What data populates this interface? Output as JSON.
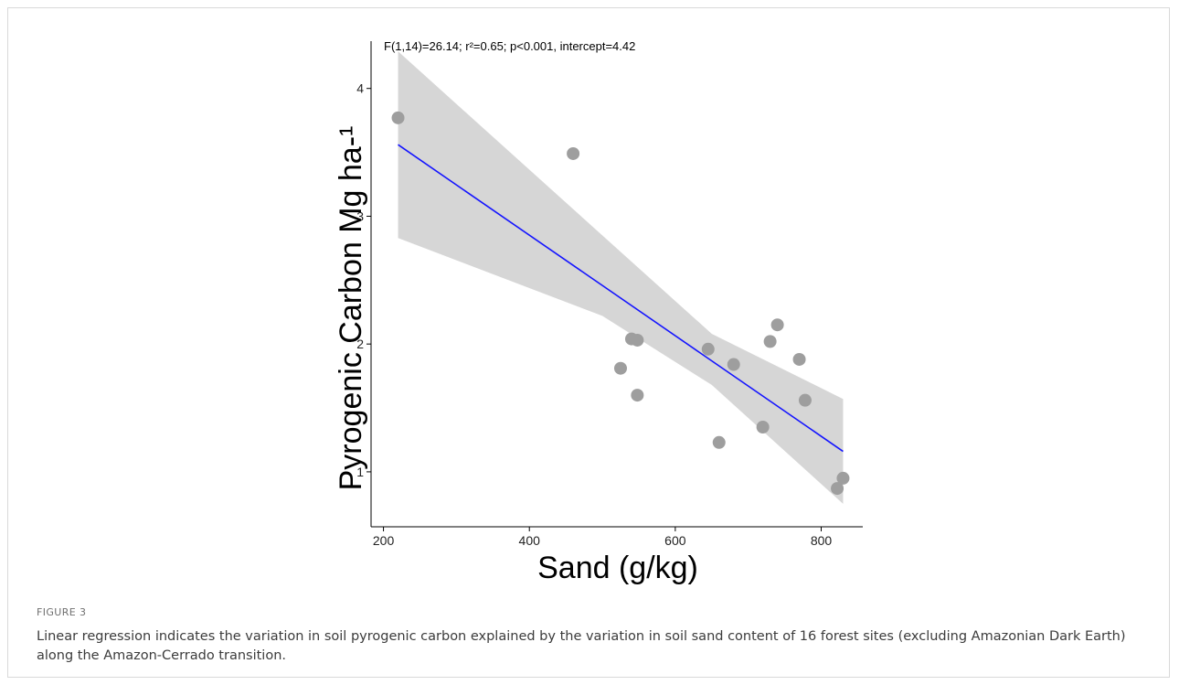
{
  "figure_label": "FIGURE 3",
  "caption": "Linear regression indicates the variation in soil pyrogenic carbon explained by the variation in soil sand content of 16 forest sites (excluding Amazonian Dark Earth) along the Amazon-Cerrado transition.",
  "chart_data": {
    "type": "scatter",
    "title": "F(1,14)=26.14; r²=0.65; p<0.001, intercept=4.42",
    "xlabel": "Sand (g/kg)",
    "ylabel": "Pyrogenic Carbon Mg ha-¹",
    "xlim": [
      183,
      857
    ],
    "ylim": [
      0.57,
      4.37
    ],
    "xticks": [
      200,
      400,
      600,
      800
    ],
    "yticks": [
      1,
      2,
      3,
      4
    ],
    "grid": false,
    "legend": "none",
    "point_color": "#9e9e9e",
    "line_color": "#1414ff",
    "band_color": "#d6d6d6",
    "points": [
      {
        "x": 220,
        "y": 3.77
      },
      {
        "x": 460,
        "y": 3.49
      },
      {
        "x": 525,
        "y": 1.81
      },
      {
        "x": 540,
        "y": 2.04
      },
      {
        "x": 548,
        "y": 2.03
      },
      {
        "x": 548,
        "y": 1.6
      },
      {
        "x": 645,
        "y": 1.96
      },
      {
        "x": 660,
        "y": 1.23
      },
      {
        "x": 680,
        "y": 1.84
      },
      {
        "x": 720,
        "y": 1.35
      },
      {
        "x": 730,
        "y": 2.02
      },
      {
        "x": 740,
        "y": 2.15
      },
      {
        "x": 770,
        "y": 1.88
      },
      {
        "x": 778,
        "y": 1.56
      },
      {
        "x": 822,
        "y": 0.87
      },
      {
        "x": 830,
        "y": 0.95
      }
    ],
    "fit": {
      "x": [
        220,
        830
      ],
      "y": [
        3.56,
        1.16
      ]
    },
    "confidence_band": {
      "x": [
        220,
        500,
        650,
        830
      ],
      "upper": [
        4.29,
        2.85,
        2.08,
        1.57
      ],
      "lower": [
        2.83,
        2.22,
        1.68,
        0.75
      ]
    }
  }
}
